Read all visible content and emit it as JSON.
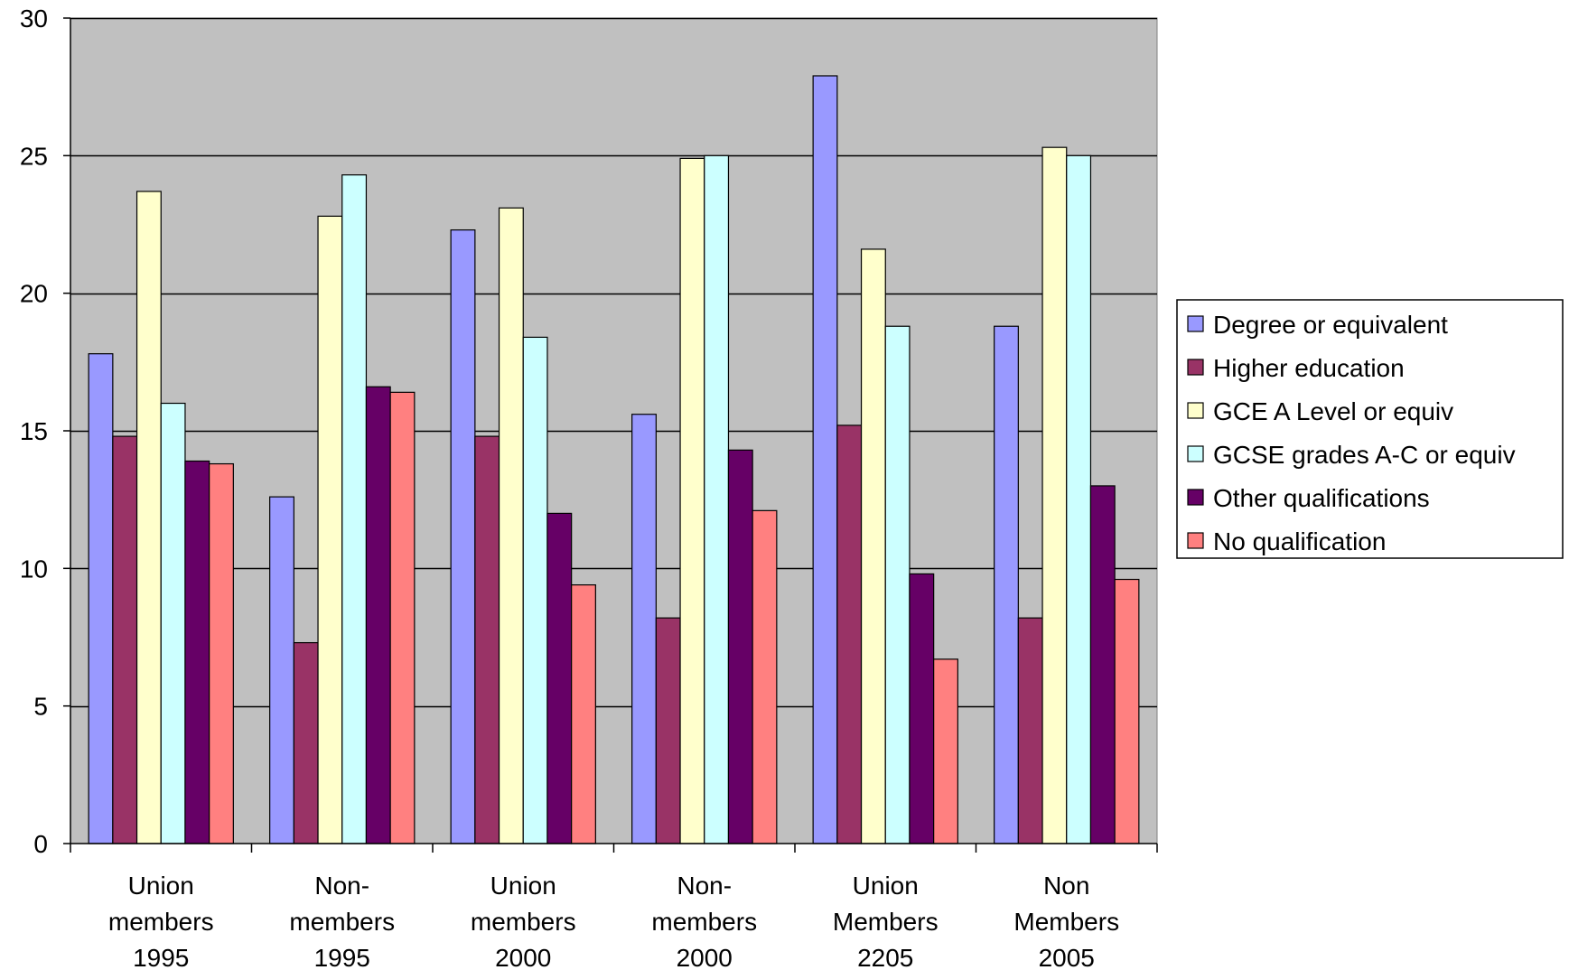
{
  "chart_data": {
    "type": "bar",
    "categories": [
      [
        "Union",
        "members",
        "1995"
      ],
      [
        "Non-",
        "members",
        "1995"
      ],
      [
        "Union",
        "members",
        "2000"
      ],
      [
        "Non-",
        "members",
        "2000"
      ],
      [
        "Union",
        "Members",
        "2205"
      ],
      [
        "Non",
        "Members",
        "2005"
      ]
    ],
    "series": [
      {
        "name": "Degree or equivalent",
        "color": "#9999FF",
        "values": [
          17.8,
          12.6,
          22.3,
          15.6,
          27.9,
          18.8
        ]
      },
      {
        "name": "Higher education",
        "color": "#993366",
        "values": [
          14.8,
          7.3,
          14.8,
          8.2,
          15.2,
          8.2
        ]
      },
      {
        "name": "GCE A Level or equiv",
        "color": "#FFFFCC",
        "values": [
          23.7,
          22.8,
          23.1,
          24.9,
          21.6,
          25.3
        ]
      },
      {
        "name": "GCSE grades A-C or equiv",
        "color": "#CCFFFF",
        "values": [
          16.0,
          24.3,
          18.4,
          25.0,
          18.8,
          25.0
        ]
      },
      {
        "name": "Other qualifications",
        "color": "#660066",
        "values": [
          13.9,
          16.6,
          12.0,
          14.3,
          9.8,
          13.0
        ]
      },
      {
        "name": "No qualification",
        "color": "#FF8080",
        "values": [
          13.8,
          16.4,
          9.4,
          12.1,
          6.7,
          9.6
        ]
      }
    ],
    "ylim": [
      0,
      30
    ],
    "yticks": [
      0,
      5,
      10,
      15,
      20,
      25,
      30
    ],
    "grid": true,
    "plot_background": "#C0C0C0",
    "legend_position": "right"
  }
}
